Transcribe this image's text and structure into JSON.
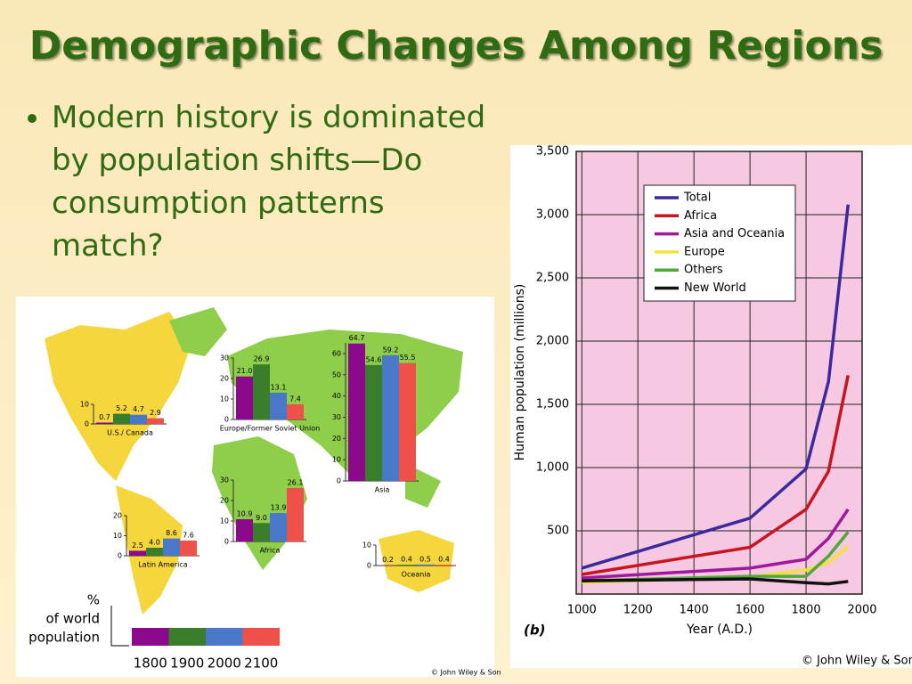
{
  "slide": {
    "title": "Demographic Changes Among Regions",
    "bullet": "Modern history is dominated by population shifts—Do consumption patterns match?"
  },
  "map": {
    "legend_label": [
      "%",
      "of world",
      "population"
    ],
    "legend_years": [
      "1800",
      "1900",
      "2000",
      "2100"
    ],
    "legend_colors": [
      "#8b0a8b",
      "#3a7d2a",
      "#4a78c8",
      "#f0504a"
    ],
    "credit": "© John Wiley & Son"
  },
  "chart_data": [
    {
      "type": "line",
      "ylabel": "Human population (millions)",
      "xlabel": "Year (A.D.)",
      "panel_label": "(b)",
      "credit": "© John Wiley & Sons",
      "x": [
        1000,
        1600,
        1800,
        1880,
        1950
      ],
      "series": [
        {
          "name": "Total",
          "color": "#3b2a9e",
          "values": [
            205,
            600,
            990,
            1680,
            3080
          ]
        },
        {
          "name": "Africa",
          "color": "#c8141e",
          "values": [
            155,
            370,
            670,
            970,
            1730
          ]
        },
        {
          "name": "Asia and Oceania",
          "color": "#a0189c",
          "values": [
            127,
            205,
            275,
            440,
            670
          ]
        },
        {
          "name": "Europe",
          "color": "#f2e23a",
          "values": [
            92,
            134,
            190,
            250,
            375
          ]
        },
        {
          "name": "Others",
          "color": "#4fa83a",
          "values": [
            105,
            140,
            140,
            300,
            490
          ]
        },
        {
          "name": "New World",
          "color": "#111111",
          "values": [
            105,
            120,
            90,
            80,
            100
          ]
        }
      ],
      "xlim": [
        980,
        2000
      ],
      "xticks": [
        1000,
        1200,
        1400,
        1600,
        1800,
        2000
      ],
      "ylim": [
        0,
        3500
      ],
      "yticks": [
        500,
        {
          "value": 1000,
          "label": "1,000"
        },
        {
          "value": 1500,
          "label": "1,500"
        },
        {
          "value": 2000,
          "label": "2,000"
        },
        {
          "value": 2500,
          "label": "2,500"
        },
        {
          "value": 3000,
          "label": "3,000"
        },
        {
          "value": 3500,
          "label": "3,500"
        }
      ],
      "grid": true
    },
    {
      "type": "bar",
      "title": "U.S./ Canada",
      "values": [
        0.7,
        5.2,
        4.7,
        2.9
      ],
      "ylim": [
        0,
        10
      ],
      "yticks": [
        0,
        10
      ]
    },
    {
      "type": "bar",
      "title": "Europe/Former Soviet Union",
      "values": [
        21.0,
        26.9,
        13.1,
        7.4
      ],
      "value_labels": [
        "21.0",
        "26.9",
        "13.1",
        "7.4"
      ],
      "ylim": [
        0,
        30
      ],
      "yticks": [
        0,
        10,
        20,
        30
      ]
    },
    {
      "type": "bar",
      "title": "Asia",
      "values": [
        64.7,
        54.6,
        59.2,
        55.5
      ],
      "ylim": [
        0,
        65
      ],
      "yticks": [
        0,
        10,
        20,
        30,
        40,
        50,
        60
      ]
    },
    {
      "type": "bar",
      "title": "Africa",
      "values": [
        10.9,
        9.0,
        13.9,
        26.1
      ],
      "value_labels": [
        "10.9",
        "9.0",
        "13.9",
        "26.1"
      ],
      "ylim": [
        0,
        30
      ],
      "yticks": [
        0,
        10,
        20,
        30
      ]
    },
    {
      "type": "bar",
      "title": "Latin America",
      "values": [
        2.5,
        4.0,
        8.6,
        7.6
      ],
      "value_labels": [
        "2.5",
        "4.0",
        "8.6",
        "7.6"
      ],
      "ylim": [
        0,
        20
      ],
      "yticks": [
        0,
        10,
        20
      ]
    },
    {
      "type": "bar",
      "title": "Oceania",
      "values": [
        0.2,
        0.4,
        0.5,
        0.4
      ],
      "ylim": [
        0,
        10
      ],
      "yticks": [
        0,
        10
      ]
    }
  ]
}
